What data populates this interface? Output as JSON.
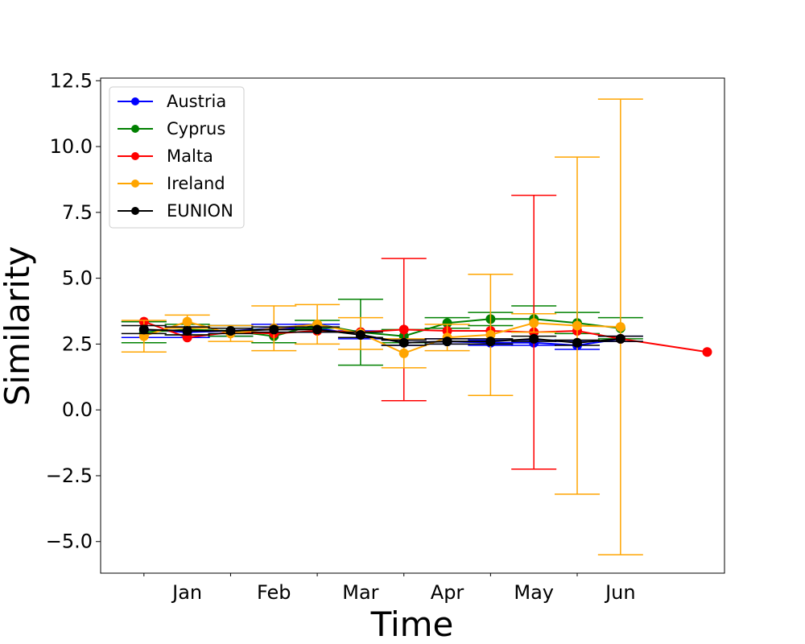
{
  "chart_data": {
    "type": "line",
    "xlabel": "Time",
    "ylabel": "Similarity",
    "ylim": [
      -6.2,
      12.6
    ],
    "xlim": [
      0.5,
      7.7
    ],
    "x_tick_labels": [
      {
        "x": 1.5,
        "label": "Jan"
      },
      {
        "x": 2.5,
        "label": "Feb"
      },
      {
        "x": 3.5,
        "label": "Mar"
      },
      {
        "x": 4.5,
        "label": "Apr"
      },
      {
        "x": 5.5,
        "label": "May"
      },
      {
        "x": 6.5,
        "label": "Jun"
      }
    ],
    "x_minor_ticks": [
      1,
      2,
      3,
      4,
      5,
      6
    ],
    "y_ticks": [
      -5.0,
      -2.5,
      0.0,
      2.5,
      5.0,
      7.5,
      10.0,
      12.5
    ],
    "y_tick_labels": [
      "−5.0",
      "−2.5",
      "0.0",
      "2.5",
      "5.0",
      "7.5",
      "10.0",
      "12.5"
    ],
    "legend_position": "top-left",
    "grid": false,
    "series": [
      {
        "name": "Austria",
        "color": "#0000ff",
        "points": [
          {
            "x": 1.0,
            "y": 3.05,
            "err": 0.3
          },
          {
            "x": 1.5,
            "y": 2.95,
            "err": 0.2
          },
          {
            "x": 2.0,
            "y": 3.0,
            "err": 0.2
          },
          {
            "x": 2.5,
            "y": 3.1,
            "err": 0.15
          },
          {
            "x": 3.0,
            "y": 3.1,
            "err": 0.15
          },
          {
            "x": 3.5,
            "y": 2.85,
            "err": 0.15
          },
          {
            "x": 4.0,
            "y": 2.55,
            "err": 0.1
          },
          {
            "x": 4.5,
            "y": 2.6,
            "err": 0.1
          },
          {
            "x": 5.0,
            "y": 2.55,
            "err": 0.1
          },
          {
            "x": 5.5,
            "y": 2.55,
            "err": 0.1
          },
          {
            "x": 6.0,
            "y": 2.45,
            "err": 0.15
          },
          {
            "x": 6.5,
            "y": 2.7,
            "err": 0.1
          }
        ]
      },
      {
        "name": "Cyprus",
        "color": "#008000",
        "points": [
          {
            "x": 1.0,
            "y": 2.95,
            "err": 0.4
          },
          {
            "x": 1.5,
            "y": 3.05,
            "err": 0.2
          },
          {
            "x": 2.0,
            "y": 3.0,
            "err": 0.2
          },
          {
            "x": 2.5,
            "y": 2.8,
            "err": 0.25
          },
          {
            "x": 3.0,
            "y": 3.25,
            "err": 0.15
          },
          {
            "x": 3.5,
            "y": 2.95,
            "err": 1.25
          },
          {
            "x": 4.0,
            "y": 2.8,
            "err": 0.25
          },
          {
            "x": 4.5,
            "y": 3.3,
            "err": 0.2
          },
          {
            "x": 5.0,
            "y": 3.45,
            "err": 0.25
          },
          {
            "x": 5.5,
            "y": 3.45,
            "err": 0.5
          },
          {
            "x": 6.0,
            "y": 3.3,
            "err": 0.4
          },
          {
            "x": 6.5,
            "y": 3.1,
            "err": 0.4
          }
        ]
      },
      {
        "name": "Malta",
        "color": "#ff0000",
        "points": [
          {
            "x": 1.0,
            "y": 3.35,
            "err": 0
          },
          {
            "x": 1.5,
            "y": 2.75,
            "err": 0
          },
          {
            "x": 2.0,
            "y": 2.95,
            "err": 0
          },
          {
            "x": 2.5,
            "y": 2.9,
            "err": 0
          },
          {
            "x": 3.0,
            "y": 3.0,
            "err": 0
          },
          {
            "x": 3.5,
            "y": 2.95,
            "err": 0
          },
          {
            "x": 4.0,
            "y": 3.05,
            "err": 2.7
          },
          {
            "x": 4.5,
            "y": 3.0,
            "err": 0
          },
          {
            "x": 5.0,
            "y": 3.0,
            "err": 0
          },
          {
            "x": 5.5,
            "y": 2.95,
            "err": 5.2
          },
          {
            "x": 6.0,
            "y": 3.0,
            "err": 0
          },
          {
            "x": 6.5,
            "y": 2.7,
            "err": 0
          },
          {
            "x": 7.5,
            "y": 2.2,
            "err": 0
          }
        ]
      },
      {
        "name": "Ireland",
        "color": "#ffa500",
        "points": [
          {
            "x": 1.0,
            "y": 2.8,
            "err": 0.6
          },
          {
            "x": 1.5,
            "y": 3.35,
            "err": 0.25
          },
          {
            "x": 2.0,
            "y": 2.9,
            "err": 0.3
          },
          {
            "x": 2.5,
            "y": 3.1,
            "err": 0.85
          },
          {
            "x": 3.0,
            "y": 3.25,
            "err": 0.75
          },
          {
            "x": 3.5,
            "y": 2.9,
            "err": 0.6
          },
          {
            "x": 4.0,
            "y": 2.15,
            "err": 0.55
          },
          {
            "x": 4.5,
            "y": 2.75,
            "err": 0.5
          },
          {
            "x": 5.0,
            "y": 2.85,
            "err": 2.3
          },
          {
            "x": 5.5,
            "y": 3.3,
            "err": 0.35
          },
          {
            "x": 6.0,
            "y": 3.2,
            "err": 6.4
          },
          {
            "x": 6.5,
            "y": 3.15,
            "err": 8.65
          }
        ]
      },
      {
        "name": "EUNION",
        "color": "#000000",
        "points": [
          {
            "x": 1.0,
            "y": 3.05,
            "err": 0.15
          },
          {
            "x": 1.5,
            "y": 3.0,
            "err": 0.15
          },
          {
            "x": 2.0,
            "y": 3.0,
            "err": 0.1
          },
          {
            "x": 2.5,
            "y": 3.05,
            "err": 0.1
          },
          {
            "x": 3.0,
            "y": 3.05,
            "err": 0.1
          },
          {
            "x": 3.5,
            "y": 2.85,
            "err": 0.1
          },
          {
            "x": 4.0,
            "y": 2.55,
            "err": 0.1
          },
          {
            "x": 4.5,
            "y": 2.6,
            "err": 0.1
          },
          {
            "x": 5.0,
            "y": 2.6,
            "err": 0.1
          },
          {
            "x": 5.5,
            "y": 2.7,
            "err": 0.1
          },
          {
            "x": 6.0,
            "y": 2.55,
            "err": 0.1
          },
          {
            "x": 6.5,
            "y": 2.7,
            "err": 0.1
          }
        ]
      }
    ]
  }
}
